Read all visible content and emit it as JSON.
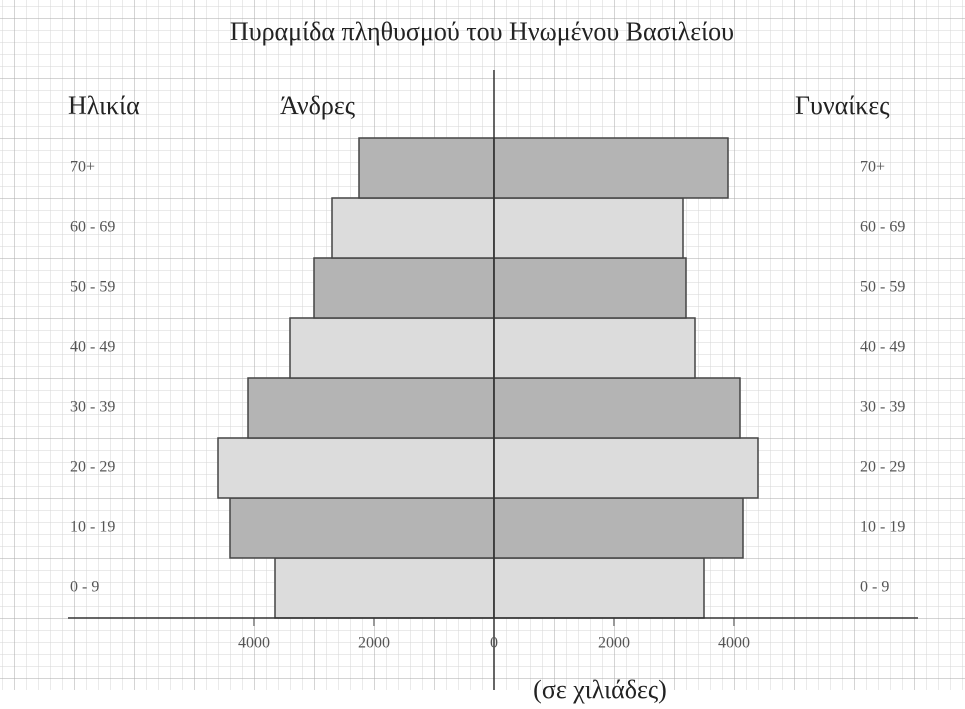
{
  "chart_data": {
    "type": "pyramid",
    "title": "Πυραμίδα πληθυσμού του Ηνωμένου Βασιλείου",
    "y_label": "Ηλικία",
    "x_label": "(σε χιλιάδες)",
    "categories": [
      "0 - 9",
      "10 - 19",
      "20 - 29",
      "30 - 39",
      "40 - 49",
      "50 - 59",
      "60 - 69",
      "70+"
    ],
    "series": [
      {
        "name": "Άνδρες",
        "side": "left",
        "values": [
          3650,
          4400,
          4600,
          4100,
          3400,
          3000,
          2700,
          2250
        ]
      },
      {
        "name": "Γυναίκες",
        "side": "right",
        "values": [
          3500,
          4150,
          4400,
          4100,
          3350,
          3200,
          3150,
          3900
        ]
      }
    ],
    "bar_colors": [
      "#dcdcdc",
      "#b4b4b4",
      "#dcdcdc",
      "#b4b4b4",
      "#dcdcdc",
      "#b4b4b4",
      "#dcdcdc",
      "#b4b4b4"
    ],
    "xlim": [
      -7000,
      7000
    ],
    "xticks": [
      {
        "value": -4000,
        "label": "4000"
      },
      {
        "value": -2000,
        "label": "2000"
      },
      0,
      2000,
      4000
    ]
  }
}
